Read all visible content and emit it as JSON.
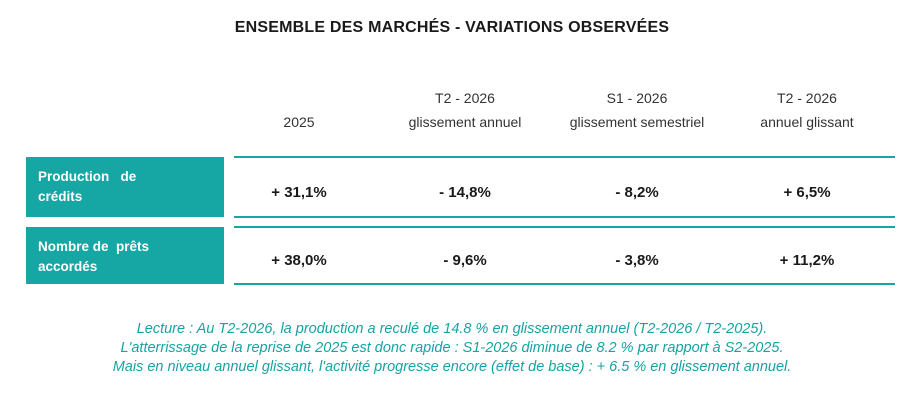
{
  "title": "ENSEMBLE DES MARCHÉS - VARIATIONS OBSERVÉES",
  "columns": [
    {
      "line1": "",
      "line2": "2025"
    },
    {
      "line1": "T2 - 2026",
      "line2": "glissement annuel"
    },
    {
      "line1": "S1 - 2026",
      "line2": "glissement semestriel"
    },
    {
      "line1": "T2 - 2026",
      "line2": "annuel glissant"
    }
  ],
  "rows": [
    {
      "label_line1": "Production   de",
      "label_line2": "crédits",
      "values": [
        "+ 31,1%",
        "- 14,8%",
        "- 8,2%",
        "+ 6,5%"
      ]
    },
    {
      "label_line1": "Nombre de  prêts",
      "label_line2": "accordés",
      "values": [
        "+ 38,0%",
        "- 9,6%",
        "- 3,8%",
        "+ 11,2%"
      ]
    }
  ],
  "lecture": [
    "Lecture : Au T2-2026, la production a reculé de 14.8 % en glissement annuel (T2-2026 / T2-2025).",
    "L'atterrissage de la reprise de 2025 est donc rapide : S1-2026 diminue de 8.2 % par rapport à S2-2025.",
    "Mais en niveau annuel glissant, l'activité progresse encore (effet de base) : + 6.5 % en glissement annuel."
  ],
  "colors": {
    "accent": "#16a6a3",
    "lecture_text": "#17a3a3"
  }
}
